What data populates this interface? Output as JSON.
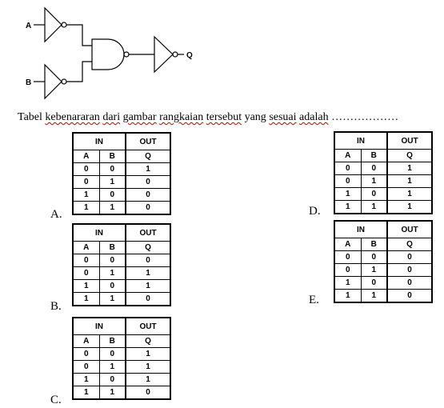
{
  "circuit": {
    "input_a": "A",
    "input_b": "B",
    "output": "Q"
  },
  "question": {
    "text_parts": [
      "Tabel",
      "kebenararan",
      "dari",
      "gambar",
      "rangkaian",
      "tersebut",
      "yang",
      "sesuai",
      "adalah"
    ],
    "dots": "………………"
  },
  "table_headers": {
    "in": "IN",
    "out": "OUT",
    "a": "A",
    "b": "B",
    "q": "Q"
  },
  "options": [
    {
      "label": "A.",
      "rows": [
        [
          "0",
          "0",
          "1"
        ],
        [
          "0",
          "1",
          "0"
        ],
        [
          "1",
          "0",
          "0"
        ],
        [
          "1",
          "1",
          "0"
        ]
      ]
    },
    {
      "label": "B.",
      "rows": [
        [
          "0",
          "0",
          "0"
        ],
        [
          "0",
          "1",
          "1"
        ],
        [
          "1",
          "0",
          "1"
        ],
        [
          "1",
          "1",
          "0"
        ]
      ]
    },
    {
      "label": "C.",
      "rows": [
        [
          "0",
          "0",
          "1"
        ],
        [
          "0",
          "1",
          "1"
        ],
        [
          "1",
          "0",
          "1"
        ],
        [
          "1",
          "1",
          "0"
        ]
      ]
    },
    {
      "label": "D.",
      "rows": [
        [
          "0",
          "0",
          "1"
        ],
        [
          "0",
          "1",
          "1"
        ],
        [
          "1",
          "0",
          "1"
        ],
        [
          "1",
          "1",
          "1"
        ]
      ]
    },
    {
      "label": "E.",
      "rows": [
        [
          "0",
          "0",
          "0"
        ],
        [
          "0",
          "1",
          "0"
        ],
        [
          "1",
          "0",
          "0"
        ],
        [
          "1",
          "1",
          "0"
        ]
      ]
    }
  ]
}
